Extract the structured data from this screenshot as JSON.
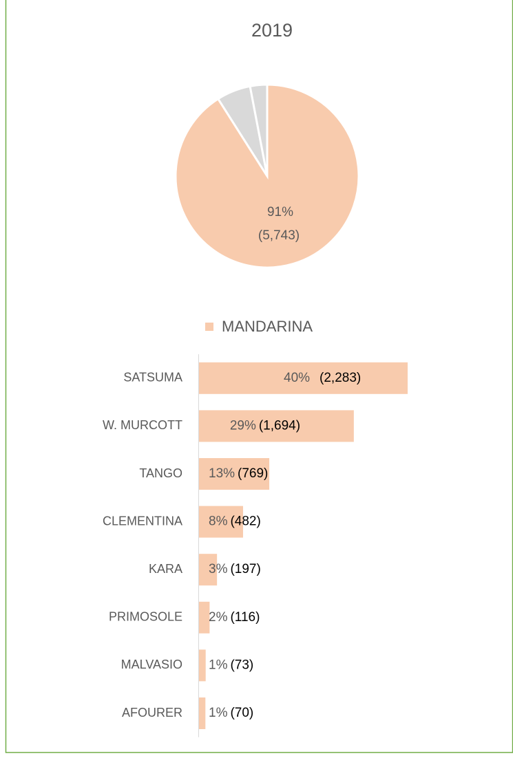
{
  "chart_data": [
    {
      "type": "pie",
      "title": "2019",
      "categories": [
        "MANDARINA",
        null,
        null
      ],
      "values": [
        91,
        6,
        3
      ],
      "value_labels": [
        "91%",
        null,
        null
      ],
      "counts": [
        5743,
        null,
        null
      ],
      "count_labels": [
        "(5,743)",
        null,
        null
      ],
      "colors": [
        "#f8cbad",
        "#d9d9d9",
        "#d9d9d9"
      ],
      "legend": "bottom"
    },
    {
      "type": "hbar",
      "categories": [
        "SATSUMA",
        "W. MURCOTT",
        "TANGO",
        "CLEMENTINA",
        "KARA",
        "PRIMOSOLE",
        "MALVASIO",
        "AFOURER"
      ],
      "values": [
        2283,
        1694,
        769,
        482,
        197,
        116,
        73,
        70
      ],
      "value_labels": [
        "(2,283)",
        "(1,694)",
        "(769)",
        "(482)",
        "(197)",
        "(116)",
        "(73)",
        "(70)"
      ],
      "percents": [
        40,
        29,
        13,
        8,
        3,
        2,
        1,
        1
      ],
      "percent_labels": [
        "40%",
        "29%",
        "13%",
        "8%",
        "3%",
        "2%",
        "1%",
        "1%"
      ],
      "color": "#f8cbad"
    }
  ]
}
